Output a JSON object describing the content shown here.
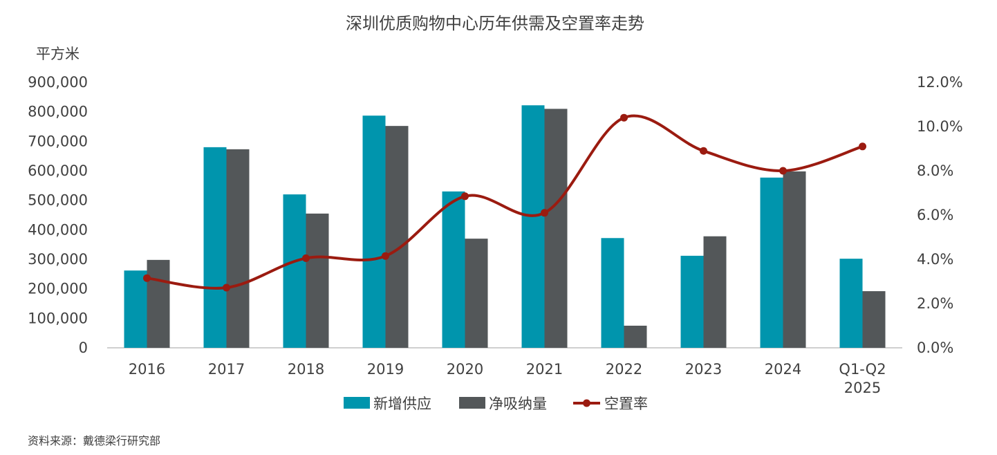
{
  "chart_data": {
    "type": "bar",
    "title": "深圳优质购物中心历年供需及空置率走势",
    "ylabel": "平方米",
    "categories": [
      "2016",
      "2017",
      "2018",
      "2019",
      "2020",
      "2021",
      "2022",
      "2023",
      "2024",
      "Q1-Q2\n2025"
    ],
    "ylim": [
      0,
      900000
    ],
    "y_ticks": [
      0,
      100000,
      200000,
      300000,
      400000,
      500000,
      600000,
      700000,
      800000,
      900000
    ],
    "y_tick_labels": [
      "0",
      "100,000",
      "200,000",
      "300,000",
      "400,000",
      "500,000",
      "600,000",
      "700,000",
      "800,000",
      "900,000"
    ],
    "y2lim": [
      0,
      12
    ],
    "y2_ticks": [
      0,
      2,
      4,
      6,
      8,
      10,
      12
    ],
    "y2_tick_labels": [
      "0.0%",
      "2.0%",
      "4.0%",
      "6.0%",
      "8.0%",
      "10.0%",
      "12.0%"
    ],
    "grid": false,
    "legend_position": "bottom",
    "series": [
      {
        "name": "新增供应",
        "type": "bar",
        "color": "#0095AD",
        "values": [
          262000,
          680000,
          520000,
          787000,
          530000,
          822000,
          372000,
          312000,
          577000,
          302000
        ]
      },
      {
        "name": "净吸纳量",
        "type": "bar",
        "color": "#535759",
        "values": [
          298000,
          673000,
          455000,
          752000,
          370000,
          810000,
          75000,
          378000,
          598000,
          192000
        ]
      },
      {
        "name": "空置率",
        "type": "line",
        "axis": "right",
        "color": "#9B1B10",
        "values": [
          3.15,
          2.72,
          4.05,
          4.15,
          6.85,
          6.1,
          10.4,
          8.9,
          8.0,
          9.1
        ]
      }
    ]
  },
  "source_note": "资料来源：戴德梁行研究部"
}
